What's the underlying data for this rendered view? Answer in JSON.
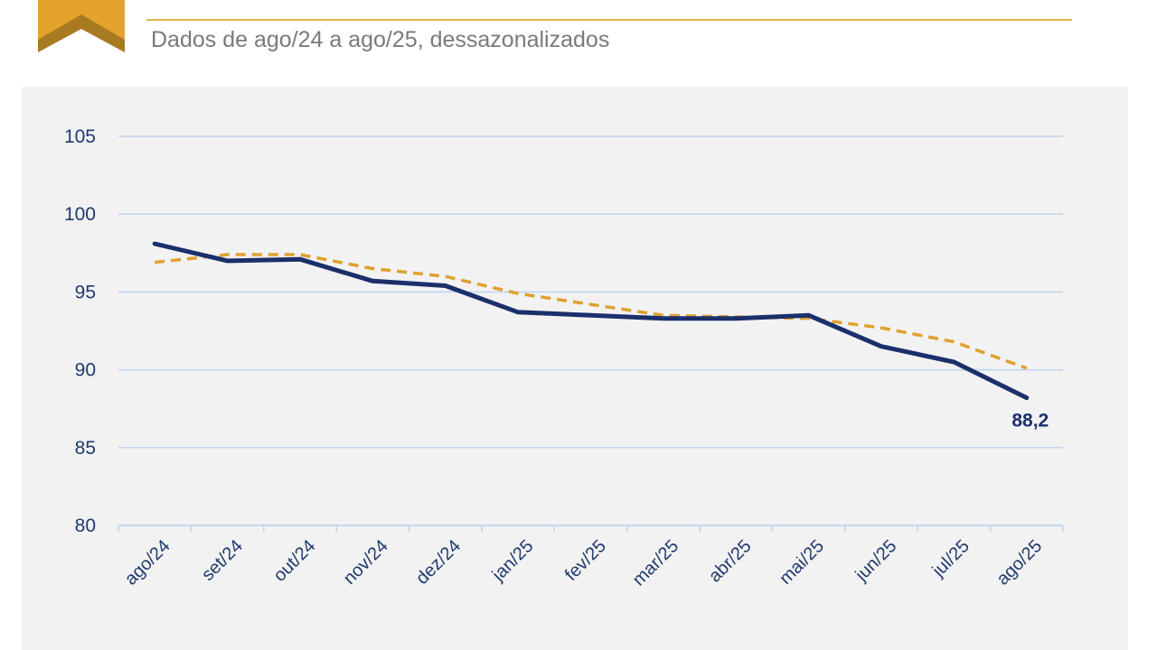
{
  "header": {
    "subtitle": "Dados de ago/24 a ago/25, dessazonalizados",
    "accent_color": "#e3a32c",
    "logo_icon": "chevron-up-icon"
  },
  "chart_data": {
    "type": "line",
    "title": "",
    "xlabel": "",
    "ylabel": "",
    "categories": [
      "ago/24",
      "set/24",
      "out/24",
      "nov/24",
      "dez/24",
      "jan/25",
      "fev/25",
      "mar/25",
      "abr/25",
      "mai/25",
      "jun/25",
      "jul/25",
      "ago/25"
    ],
    "ylim": [
      80,
      105
    ],
    "yticks": [
      "105",
      "100",
      "95",
      "90",
      "85",
      "80"
    ],
    "grid": true,
    "series": [
      {
        "color": "#1b2f6b",
        "style": "solid",
        "values": [
          98.1,
          97.0,
          97.1,
          95.7,
          95.4,
          93.7,
          93.5,
          93.3,
          93.3,
          93.5,
          91.5,
          90.5,
          88.2
        ]
      },
      {
        "color": "#dea131",
        "style": "dashed",
        "values": [
          96.9,
          97.4,
          97.4,
          96.5,
          96.0,
          94.9,
          94.2,
          93.5,
          93.4,
          93.3,
          92.7,
          91.8,
          90.1
        ]
      }
    ],
    "data_labels": [
      {
        "series": 0,
        "index": 12,
        "text": "88,2"
      }
    ]
  }
}
